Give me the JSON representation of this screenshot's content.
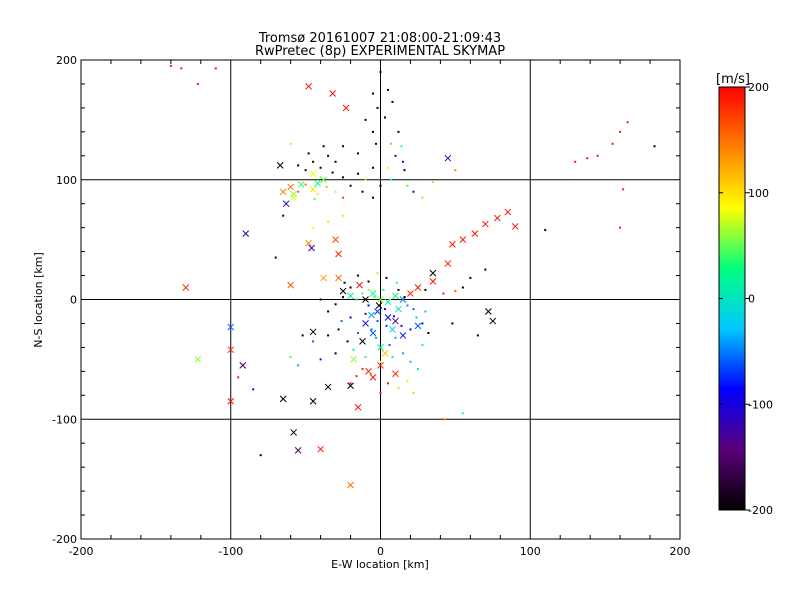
{
  "chart_data": {
    "type": "scatter",
    "title": "Tromsø 20161007 21:08:00-21:09:43",
    "subtitle": "RwPretec (8p) EXPERIMENTAL SKYMAP",
    "xlabel": "E-W location [km]",
    "ylabel": "N-S location [km]",
    "xlim": [
      -200,
      200
    ],
    "ylim": [
      -200,
      200
    ],
    "xticks": [
      "-200",
      "-100",
      "0",
      "100",
      "200"
    ],
    "yticks": [
      "-200",
      "-100",
      "0",
      "100",
      "200"
    ],
    "grid": true,
    "colorbar": {
      "label": "[m/s]",
      "range": [
        -200,
        200
      ],
      "ticks": [
        "200",
        "100",
        "0",
        "-100",
        "-200"
      ],
      "colors": [
        "#000000",
        "#5a007a",
        "#0000ff",
        "#00c8ff",
        "#00ff80",
        "#ffff00",
        "#ff8000",
        "#ff0000"
      ]
    },
    "series": [
      {
        "name": "cross",
        "marker": "x",
        "points": [
          [
            -48,
            178,
            190
          ],
          [
            -32,
            172,
            190
          ],
          [
            -23,
            160,
            190
          ],
          [
            45,
            118,
            -110
          ],
          [
            -67,
            112,
            -200
          ],
          [
            -60,
            94,
            150
          ],
          [
            -65,
            90,
            140
          ],
          [
            -45,
            92,
            100
          ],
          [
            -58,
            85,
            80
          ],
          [
            -63,
            80,
            -110
          ],
          [
            -53,
            96,
            40
          ],
          [
            -42,
            97,
            30
          ],
          [
            -90,
            55,
            -120
          ],
          [
            -48,
            47,
            140
          ],
          [
            -46,
            43,
            -120
          ],
          [
            -30,
            50,
            170
          ],
          [
            -28,
            38,
            180
          ],
          [
            -58,
            88,
            60
          ],
          [
            -45,
            105,
            80
          ],
          [
            -38,
            100,
            50
          ],
          [
            -130,
            10,
            180
          ],
          [
            -60,
            12,
            160
          ],
          [
            -38,
            18,
            130
          ],
          [
            -28,
            18,
            160
          ],
          [
            -25,
            7,
            -200
          ],
          [
            -20,
            3,
            20
          ],
          [
            -14,
            12,
            190
          ],
          [
            -10,
            0,
            -200
          ],
          [
            -5,
            5,
            30
          ],
          [
            0,
            0,
            60
          ],
          [
            5,
            -2,
            10
          ],
          [
            10,
            3,
            30
          ],
          [
            15,
            0,
            -50
          ],
          [
            20,
            5,
            180
          ],
          [
            25,
            10,
            190
          ],
          [
            35,
            15,
            190
          ],
          [
            45,
            30,
            190
          ],
          [
            -1,
            -5,
            -200
          ],
          [
            -6,
            -13,
            -40
          ],
          [
            5,
            -15,
            -90
          ],
          [
            8,
            -25,
            -30
          ],
          [
            -10,
            -20,
            -100
          ],
          [
            -5,
            -28,
            -60
          ],
          [
            15,
            -30,
            -80
          ],
          [
            -12,
            -35,
            -200
          ],
          [
            0,
            -40,
            20
          ],
          [
            -45,
            -27,
            -200
          ],
          [
            -100,
            -23,
            -60
          ],
          [
            -122,
            -50,
            60
          ],
          [
            -100,
            -42,
            180
          ],
          [
            -92,
            -55,
            -160
          ],
          [
            -100,
            -85,
            190
          ],
          [
            -65,
            -83,
            -200
          ],
          [
            -45,
            -85,
            -200
          ],
          [
            -35,
            -73,
            -200
          ],
          [
            -20,
            -72,
            -200
          ],
          [
            -15,
            -90,
            190
          ],
          [
            -58,
            -111,
            -200
          ],
          [
            -55,
            -126,
            -160
          ],
          [
            -40,
            -125,
            190
          ],
          [
            -20,
            -155,
            150
          ],
          [
            75,
            -18,
            -200
          ],
          [
            72,
            -10,
            -200
          ],
          [
            35,
            22,
            -200
          ],
          [
            25,
            -22,
            -60
          ],
          [
            -8,
            -60,
            180
          ],
          [
            0,
            -55,
            180
          ],
          [
            -5,
            -65,
            190
          ],
          [
            10,
            -62,
            180
          ],
          [
            48,
            46,
            190
          ],
          [
            55,
            50,
            190
          ],
          [
            63,
            55,
            190
          ],
          [
            70,
            63,
            190
          ],
          [
            78,
            68,
            190
          ],
          [
            85,
            73,
            190
          ],
          [
            90,
            61,
            190
          ],
          [
            10,
            -18,
            -140
          ],
          [
            -18,
            -50,
            60
          ],
          [
            3,
            -45,
            110
          ],
          [
            -2,
            -10,
            -70
          ],
          [
            12,
            -8,
            0
          ]
        ]
      },
      {
        "name": "dot",
        "marker": "dot",
        "points": [
          [
            -140,
            195,
            190
          ],
          [
            -133,
            193,
            190
          ],
          [
            -122,
            180,
            190
          ],
          [
            -110,
            193,
            190
          ],
          [
            0,
            190,
            -200
          ],
          [
            -5,
            172,
            -200
          ],
          [
            5,
            175,
            -200
          ],
          [
            8,
            165,
            -200
          ],
          [
            -2,
            160,
            -200
          ],
          [
            3,
            152,
            -200
          ],
          [
            -10,
            150,
            -200
          ],
          [
            12,
            140,
            -200
          ],
          [
            14,
            128,
            40
          ],
          [
            7,
            130,
            40
          ],
          [
            -3,
            130,
            -200
          ],
          [
            10,
            120,
            -120
          ],
          [
            15,
            115,
            -120
          ],
          [
            16,
            108,
            -200
          ],
          [
            7,
            100,
            30
          ],
          [
            0,
            95,
            -200
          ],
          [
            -5,
            110,
            -200
          ],
          [
            -15,
            122,
            -200
          ],
          [
            -25,
            128,
            -200
          ],
          [
            -30,
            115,
            -200
          ],
          [
            -35,
            120,
            -200
          ],
          [
            -40,
            110,
            -200
          ],
          [
            -45,
            115,
            -200
          ],
          [
            -50,
            108,
            -200
          ],
          [
            -55,
            112,
            -200
          ],
          [
            -48,
            122,
            -200
          ],
          [
            -38,
            128,
            -200
          ],
          [
            -32,
            106,
            -200
          ],
          [
            -25,
            102,
            -200
          ],
          [
            -20,
            95,
            -200
          ],
          [
            -12,
            90,
            -200
          ],
          [
            -5,
            85,
            -200
          ],
          [
            -55,
            90,
            160
          ],
          [
            -50,
            96,
            150
          ],
          [
            -42,
            88,
            100
          ],
          [
            -36,
            94,
            120
          ],
          [
            -30,
            90,
            70
          ],
          [
            -25,
            85,
            170
          ],
          [
            -40,
            102,
            60
          ],
          [
            -44,
            84,
            40
          ],
          [
            22,
            90,
            -100
          ],
          [
            28,
            85,
            110
          ],
          [
            35,
            98,
            60
          ],
          [
            50,
            108,
            140
          ],
          [
            130,
            115,
            190
          ],
          [
            138,
            118,
            190
          ],
          [
            145,
            120,
            190
          ],
          [
            155,
            130,
            190
          ],
          [
            160,
            140,
            190
          ],
          [
            165,
            148,
            190
          ],
          [
            162,
            92,
            190
          ],
          [
            183,
            128,
            -200
          ],
          [
            110,
            58,
            -200
          ],
          [
            160,
            60,
            190
          ],
          [
            70,
            25,
            -200
          ],
          [
            60,
            18,
            -200
          ],
          [
            55,
            10,
            -200
          ],
          [
            50,
            7,
            160
          ],
          [
            42,
            5,
            190
          ],
          [
            30,
            8,
            -200
          ],
          [
            -8,
            15,
            -200
          ],
          [
            -15,
            20,
            -200
          ],
          [
            -20,
            10,
            -200
          ],
          [
            -25,
            2,
            -200
          ],
          [
            -30,
            -4,
            -200
          ],
          [
            -35,
            -10,
            -200
          ],
          [
            -40,
            0,
            -200
          ],
          [
            -12,
            5,
            40
          ],
          [
            -8,
            8,
            60
          ],
          [
            -4,
            2,
            40
          ],
          [
            2,
            8,
            30
          ],
          [
            6,
            0,
            50
          ],
          [
            12,
            8,
            -200
          ],
          [
            16,
            2,
            -200
          ],
          [
            18,
            -5,
            -50
          ],
          [
            22,
            -8,
            -60
          ],
          [
            24,
            -15,
            -30
          ],
          [
            28,
            -20,
            -80
          ],
          [
            -2,
            -18,
            -60
          ],
          [
            4,
            -22,
            -70
          ],
          [
            -6,
            -25,
            -50
          ],
          [
            10,
            -32,
            -40
          ],
          [
            -15,
            -28,
            -60
          ],
          [
            -20,
            -15,
            -100
          ],
          [
            -22,
            -35,
            -200
          ],
          [
            -28,
            -25,
            -200
          ],
          [
            -30,
            -45,
            -200
          ],
          [
            -35,
            -30,
            -200
          ],
          [
            -18,
            -42,
            20
          ],
          [
            -10,
            -48,
            40
          ],
          [
            0,
            -52,
            80
          ],
          [
            8,
            -48,
            20
          ],
          [
            15,
            -45,
            -40
          ],
          [
            20,
            -52,
            -30
          ],
          [
            25,
            -58,
            20
          ],
          [
            28,
            -38,
            30
          ],
          [
            32,
            -28,
            -200
          ],
          [
            -12,
            -58,
            180
          ],
          [
            -16,
            -64,
            190
          ],
          [
            -20,
            -70,
            190
          ],
          [
            5,
            -70,
            190
          ],
          [
            12,
            -74,
            60
          ],
          [
            18,
            -68,
            70
          ],
          [
            22,
            -78,
            60
          ],
          [
            0,
            -78,
            190
          ],
          [
            -60,
            -48,
            40
          ],
          [
            -55,
            -55,
            -40
          ],
          [
            -95,
            -65,
            190
          ],
          [
            -85,
            -75,
            -80
          ],
          [
            -45,
            -35,
            -60
          ],
          [
            -40,
            -50,
            -100
          ],
          [
            -52,
            -30,
            -200
          ],
          [
            -70,
            35,
            -200
          ],
          [
            -65,
            70,
            -200
          ],
          [
            -45,
            60,
            80
          ],
          [
            -35,
            65,
            100
          ],
          [
            -25,
            70,
            70
          ],
          [
            -80,
            -130,
            -200
          ],
          [
            43,
            -100,
            140
          ],
          [
            55,
            -95,
            40
          ],
          [
            48,
            -20,
            -200
          ],
          [
            65,
            -30,
            -200
          ],
          [
            -5,
            140,
            -200
          ],
          [
            5,
            110,
            80
          ],
          [
            -10,
            100,
            60
          ],
          [
            -15,
            105,
            -200
          ],
          [
            18,
            95,
            40
          ],
          [
            -60,
            130,
            70
          ],
          [
            -8,
            -5,
            -90
          ],
          [
            3,
            -8,
            -100
          ],
          [
            9,
            -14,
            -80
          ],
          [
            -3,
            -32,
            -40
          ],
          [
            14,
            -22,
            -120
          ],
          [
            20,
            -25,
            -90
          ],
          [
            -10,
            -12,
            -150
          ],
          [
            6,
            -38,
            -60
          ],
          [
            -16,
            0,
            20
          ],
          [
            11,
            14,
            40
          ],
          [
            -2,
            22,
            60
          ],
          [
            4,
            18,
            -200
          ],
          [
            -24,
            14,
            -200
          ],
          [
            30,
            -10,
            -30
          ],
          [
            -26,
            -18,
            -50
          ]
        ]
      }
    ]
  }
}
